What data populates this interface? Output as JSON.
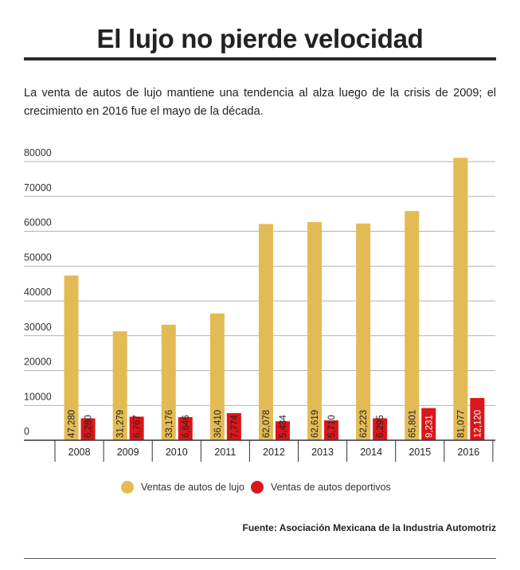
{
  "title": "El lujo no pierde velocidad",
  "subtitle": "La venta de autos de lujo mantiene una tendencia al alza luego de la crisis de 2009; el crecimiento en 2016 fue el mayo de la década.",
  "source": "Fuente: Asociación Mexicana de la Industria Automotriz",
  "colors": {
    "lujo": "#e3bb54",
    "deportivos": "#d9161a"
  },
  "chart_data": {
    "type": "bar",
    "title": "El lujo no pierde velocidad",
    "categories": [
      "2008",
      "2009",
      "2010",
      "2011",
      "2012",
      "2013",
      "2014",
      "2015",
      "2016"
    ],
    "series": [
      {
        "name": "Ventas de autos de lujo",
        "values": [
          47280,
          31279,
          33176,
          36410,
          62078,
          62619,
          62223,
          65801,
          81077
        ],
        "labels": [
          "47,280",
          "31,279",
          "33,176",
          "36,410",
          "62,078",
          "62,619",
          "62,223",
          "65,801",
          "81,077"
        ]
      },
      {
        "name": "Ventas de autos deportivos",
        "values": [
          6280,
          6767,
          6646,
          7774,
          5434,
          5710,
          6295,
          9231,
          12120
        ],
        "labels": [
          "6,280",
          "6,767",
          "6,646",
          "7,774",
          "5,434",
          "5,710",
          "6,295",
          "9,231",
          "12,120"
        ]
      }
    ],
    "yticks": [
      "0",
      "10000",
      "20000",
      "30000",
      "40000",
      "50000",
      "60000",
      "70000",
      "80000"
    ],
    "ylim": [
      0,
      80000
    ],
    "grid": true,
    "legend": "bottom"
  }
}
